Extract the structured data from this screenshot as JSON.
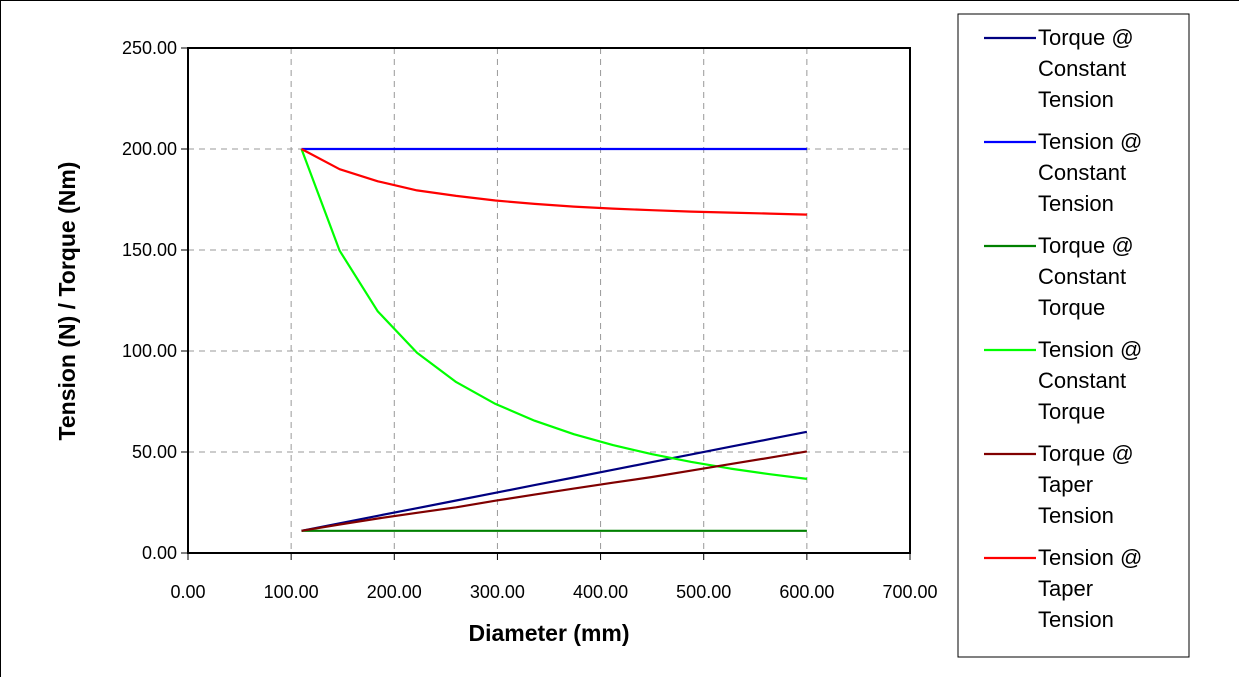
{
  "chart_data": {
    "type": "line",
    "xlabel": "Diameter (mm)",
    "ylabel": "Tension (N) / Torque (Nm)",
    "xlim": [
      0,
      700
    ],
    "ylim": [
      0,
      250
    ],
    "x_ticks": [
      "0.00",
      "100.00",
      "200.00",
      "300.00",
      "400.00",
      "500.00",
      "600.00",
      "700.00"
    ],
    "y_ticks": [
      "0.00",
      "50.00",
      "100.00",
      "150.00",
      "200.00",
      "250.00"
    ],
    "grid": true,
    "legend_placement": "right",
    "x": [
      110,
      147,
      184,
      222,
      260,
      298,
      336,
      374,
      412,
      450,
      488,
      526,
      564,
      600
    ],
    "series": [
      {
        "name_lines": [
          "Torque @",
          "Constant",
          "Tension"
        ],
        "color": "#000080",
        "values": [
          11.0,
          14.7,
          18.4,
          22.2,
          26.0,
          29.8,
          33.6,
          37.4,
          41.2,
          45.0,
          48.8,
          52.6,
          56.4,
          60.0
        ]
      },
      {
        "name_lines": [
          "Tension @",
          "Constant",
          "Tension"
        ],
        "color": "#0000ff",
        "values": [
          200,
          200,
          200,
          200,
          200,
          200,
          200,
          200,
          200,
          200,
          200,
          200,
          200,
          200
        ]
      },
      {
        "name_lines": [
          "Torque @",
          "Constant",
          "Torque"
        ],
        "color": "#008000",
        "values": [
          11,
          11,
          11,
          11,
          11,
          11,
          11,
          11,
          11,
          11,
          11,
          11,
          11,
          11
        ]
      },
      {
        "name_lines": [
          "Tension @",
          "Constant",
          "Torque"
        ],
        "color": "#00ff00",
        "values": [
          200,
          149.7,
          119.6,
          99.1,
          84.6,
          73.8,
          65.5,
          58.8,
          53.4,
          48.9,
          45.1,
          41.8,
          39.0,
          36.7
        ]
      },
      {
        "name_lines": [
          "Torque @",
          "Taper",
          "Tension"
        ],
        "color": "#800000",
        "values": [
          11.0,
          14.1,
          17.1,
          19.9,
          22.6,
          25.9,
          28.9,
          31.9,
          34.8,
          37.6,
          40.8,
          44.0,
          47.2,
          50.3
        ]
      },
      {
        "name_lines": [
          "Tension @",
          "Taper",
          "Tension"
        ],
        "color": "#ff0000",
        "values": [
          200,
          190,
          184,
          179.5,
          176.8,
          174.5,
          172.8,
          171.5,
          170.5,
          169.7,
          169.0,
          168.5,
          168.0,
          167.5
        ]
      }
    ]
  }
}
